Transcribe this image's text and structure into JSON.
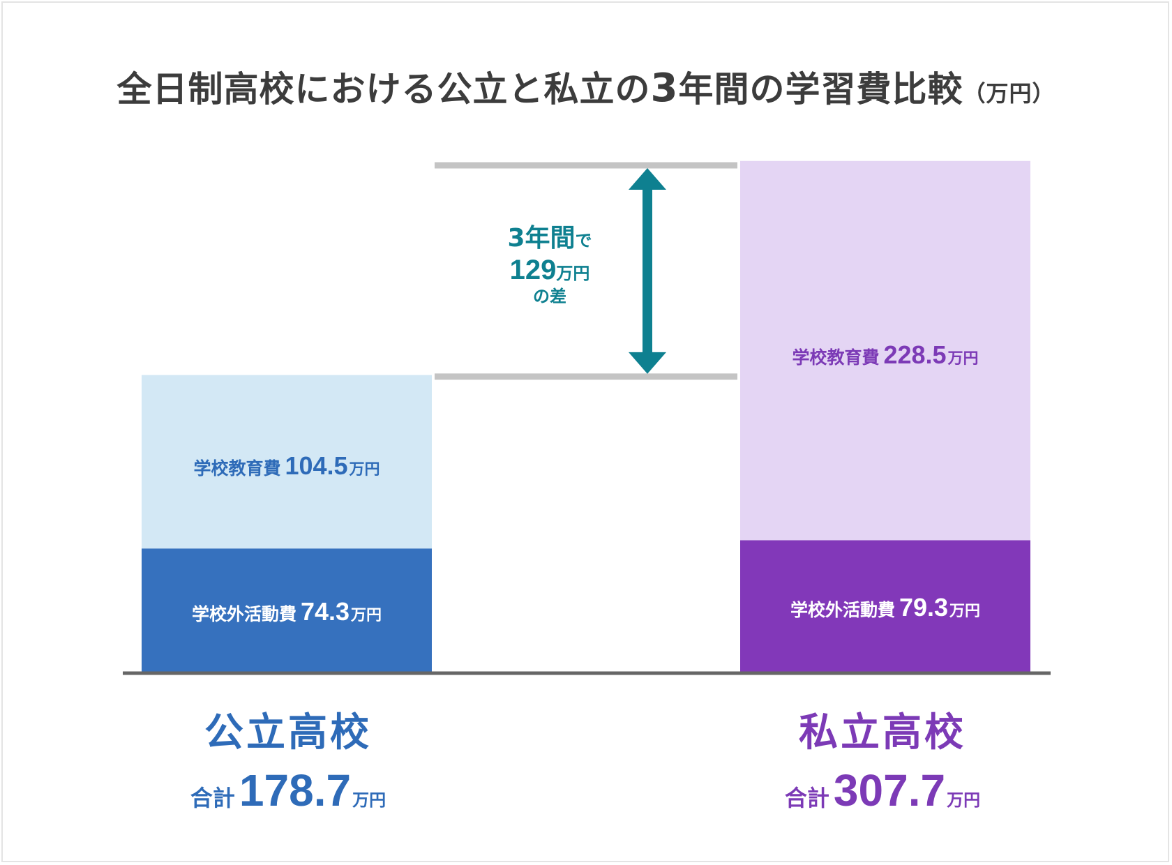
{
  "title": {
    "main": "全日制高校における公立と私立の",
    "num": "3",
    "main2": "年間の学習費比較",
    "unit": "（万円）"
  },
  "chart_data": {
    "type": "bar",
    "stacked": true,
    "categories": [
      "公立高校",
      "私立高校"
    ],
    "series": [
      {
        "name": "学校外活動費",
        "values": [
          74.3,
          79.3
        ]
      },
      {
        "name": "学校教育費",
        "values": [
          104.5,
          228.5
        ]
      }
    ],
    "totals": [
      178.7,
      307.7
    ],
    "ylim": [
      0,
      307.7
    ]
  },
  "labels": {
    "public_outside": {
      "name": "学校外活動費",
      "value": "74.3",
      "unit": "万円"
    },
    "public_school": {
      "name": "学校教育費",
      "value": "104.5",
      "unit": "万円"
    },
    "private_outside": {
      "name": "学校外活動費",
      "value": "79.3",
      "unit": "万円"
    },
    "private_school": {
      "name": "学校教育費",
      "value": "228.5",
      "unit": "万円"
    }
  },
  "diff": {
    "line1": "3年間",
    "de": "で",
    "value": "129",
    "unit": "万円",
    "line3": "の差"
  },
  "public": {
    "name": "公立高校",
    "total_label": "合計",
    "total": "178.7",
    "unit": "万円"
  },
  "private": {
    "name": "私立高校",
    "total_label": "合計",
    "total": "307.7",
    "unit": "万円"
  },
  "colors": {
    "public_outside": "#3671be",
    "public_school": "#d3e8f5",
    "public_text": "#2e6bb8",
    "private_outside": "#8238b9",
    "private_school": "#e4d5f4",
    "private_text": "#7c3ab6",
    "diff": "#0e8090",
    "guide": "#c4c4c4",
    "axis": "#666666"
  }
}
